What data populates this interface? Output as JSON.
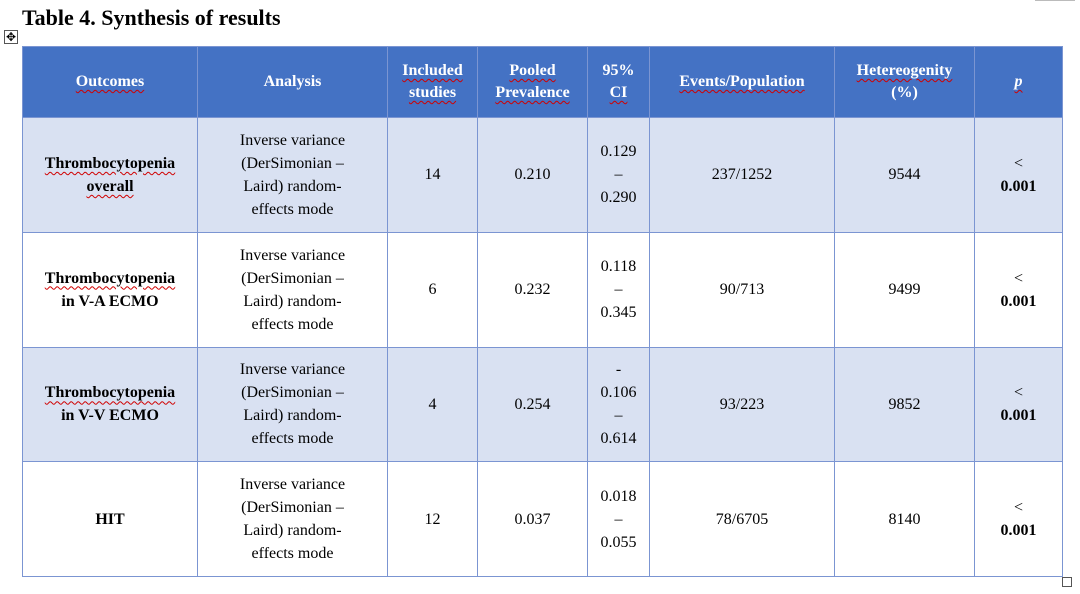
{
  "title": "Table 4. Synthesis of results",
  "headers": {
    "outcomes": "Outcomes",
    "analysis": "Analysis",
    "included_1": "Included",
    "included_2": "studies",
    "pooled_1": "Pooled",
    "pooled_2": "Prevalence",
    "ci_1": "95%",
    "ci_2": "CI",
    "events": "Events/Population",
    "het_1": "Hetereogenity",
    "het_2": "(%)",
    "p": "p"
  },
  "analysis_text": {
    "line1": "Inverse variance",
    "line2": "(DerSimonian –",
    "line3": "Laird) random-",
    "line4": "effects mode"
  },
  "rows": [
    {
      "outcome_1": "Thrombocytopenia",
      "outcome_2": "overall",
      "studies": "14",
      "prevalence": "0.210",
      "ci_pre": "",
      "ci_low": "0.129",
      "ci_dash": "–",
      "ci_high": "0.290",
      "events": "237/1252",
      "heterogeneity": "9544",
      "p_1": "<",
      "p_2": "0.001"
    },
    {
      "outcome_1": "Thrombocytopenia",
      "outcome_2": "in V-A ECMO",
      "studies": "6",
      "prevalence": "0.232",
      "ci_pre": "",
      "ci_low": "0.118",
      "ci_dash": "–",
      "ci_high": "0.345",
      "events": "90/713",
      "heterogeneity": "9499",
      "p_1": "<",
      "p_2": "0.001"
    },
    {
      "outcome_1": "Thrombocytopenia",
      "outcome_2": "in V-V ECMO",
      "studies": "4",
      "prevalence": "0.254",
      "ci_pre": "-",
      "ci_low": "0.106",
      "ci_dash": "–",
      "ci_high": "0.614",
      "events": "93/223",
      "heterogeneity": "9852",
      "p_1": "<",
      "p_2": "0.001"
    },
    {
      "outcome_1": "HIT",
      "outcome_2": "",
      "studies": "12",
      "prevalence": "0.037",
      "ci_pre": "",
      "ci_low": "0.018",
      "ci_dash": "–",
      "ci_high": "0.055",
      "events": "78/6705",
      "heterogeneity": "8140",
      "p_1": "<",
      "p_2": "0.001"
    }
  ]
}
